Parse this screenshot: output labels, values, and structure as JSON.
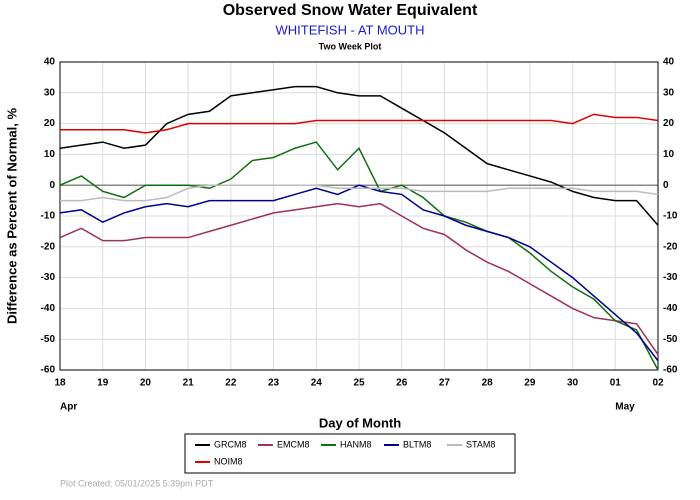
{
  "chart_data": {
    "type": "line",
    "title": "Observed Snow Water Equivalent",
    "subtitle": "WHITEFISH - AT MOUTH",
    "subtitle2": "Two Week Plot",
    "xlabel": "Day of Month",
    "ylabel": "Difference as Percent of Normal, %",
    "footer": "Plot Created: 05/01/2025 5:39pm PDT",
    "x": [
      0,
      0.5,
      1,
      1.5,
      2,
      2.5,
      3,
      3.5,
      4,
      4.5,
      5,
      5.5,
      6,
      6.5,
      7,
      7.5,
      8,
      8.5,
      9,
      9.5,
      10,
      10.5,
      11,
      11.5,
      12,
      12.5,
      13,
      13.5,
      14
    ],
    "xlim": [
      0,
      14
    ],
    "xticks": [
      {
        "value": 0,
        "label": "18"
      },
      {
        "value": 1,
        "label": "19"
      },
      {
        "value": 2,
        "label": "20"
      },
      {
        "value": 3,
        "label": "21"
      },
      {
        "value": 4,
        "label": "22"
      },
      {
        "value": 5,
        "label": "23"
      },
      {
        "value": 6,
        "label": "24"
      },
      {
        "value": 7,
        "label": "25"
      },
      {
        "value": 8,
        "label": "26"
      },
      {
        "value": 9,
        "label": "27"
      },
      {
        "value": 10,
        "label": "28"
      },
      {
        "value": 11,
        "label": "29"
      },
      {
        "value": 12,
        "label": "30"
      },
      {
        "value": 13,
        "label": "01"
      },
      {
        "value": 14,
        "label": "02"
      }
    ],
    "month_labels": [
      {
        "value": 0,
        "label": "Apr"
      },
      {
        "value": 13,
        "label": "May"
      }
    ],
    "ylim": [
      -60,
      40
    ],
    "yticks": [
      -60,
      -50,
      -40,
      -30,
      -20,
      -10,
      0,
      10,
      20,
      30,
      40
    ],
    "grid": true,
    "series": [
      {
        "name": "GRCM8",
        "color": "#000000",
        "values": [
          12,
          13,
          14,
          12,
          13,
          20,
          23,
          24,
          29,
          30,
          31,
          32,
          32,
          30,
          29,
          29,
          25,
          21,
          17,
          12,
          7,
          5,
          3,
          1,
          -2,
          -4,
          -5,
          -5,
          -13
        ]
      },
      {
        "name": "EMCM8",
        "color": "#a0305a",
        "values": [
          -17,
          -14,
          -18,
          -18,
          -17,
          -17,
          -17,
          -15,
          -13,
          -11,
          -9,
          -8,
          -7,
          -6,
          -7,
          -6,
          -10,
          -14,
          -16,
          -21,
          -25,
          -28,
          -32,
          -36,
          -40,
          -43,
          -44,
          -45,
          -55
        ]
      },
      {
        "name": "HANM8",
        "color": "#107010",
        "values": [
          0,
          3,
          -2,
          -4,
          0,
          0,
          0,
          -1,
          2,
          8,
          9,
          12,
          14,
          5,
          12,
          -2,
          0,
          -4,
          -10,
          -12,
          -15,
          -17,
          -22,
          -28,
          -33,
          -37,
          -44,
          -47,
          -60
        ]
      },
      {
        "name": "BLTM8",
        "color": "#000090",
        "values": [
          -9,
          -8,
          -12,
          -9,
          -7,
          -6,
          -7,
          -5,
          -5,
          -5,
          -5,
          -3,
          -1,
          -3,
          0,
          -2,
          -3,
          -8,
          -10,
          -13,
          -15,
          -17,
          -20,
          -25,
          -30,
          -36,
          -42,
          -48,
          -57
        ]
      },
      {
        "name": "STAM8",
        "color": "#bbbbbb",
        "values": [
          -5,
          -5,
          -4,
          -5,
          -5,
          -4,
          -1,
          0,
          0,
          0,
          0,
          0,
          0,
          -1,
          -1,
          -1,
          -1,
          -2,
          -2,
          -2,
          -2,
          -1,
          -1,
          -1,
          -1,
          -2,
          -2,
          -2,
          -3
        ]
      },
      {
        "name": "NOIM8",
        "color": "#e00000",
        "values": [
          18,
          18,
          18,
          18,
          17,
          18,
          20,
          20,
          20,
          20,
          20,
          20,
          21,
          21,
          21,
          21,
          21,
          21,
          21,
          21,
          21,
          21,
          21,
          21,
          20,
          23,
          22,
          22,
          21
        ]
      }
    ]
  }
}
